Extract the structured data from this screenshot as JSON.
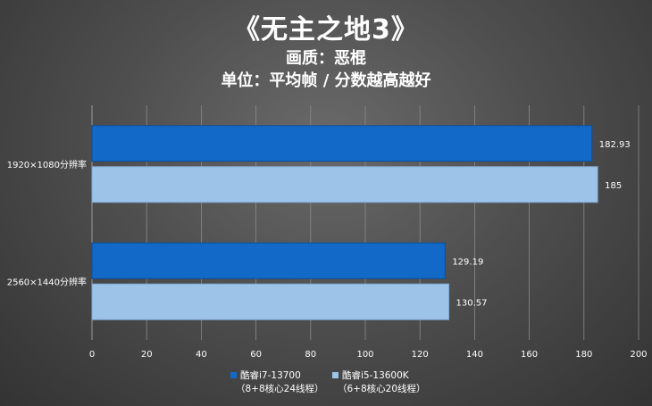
{
  "chart_data": {
    "type": "bar",
    "orientation": "horizontal",
    "title": "《无主之地3》",
    "subtitle_lines": [
      "画质：恶棍",
      "单位：平均帧 / 分数越高越好"
    ],
    "categories": [
      "1920×1080分辨率",
      "2560×1440分辨率"
    ],
    "series": [
      {
        "name": "酷睿i7-13700",
        "note": "（8+8核心24线程）",
        "values": [
          182.93,
          129.19
        ],
        "color": "#1269c7"
      },
      {
        "name": "酷睿i5-13600K",
        "note": "（6+8核心20线程）",
        "values": [
          185,
          130.57
        ],
        "color": "#9ec3e8"
      }
    ],
    "value_labels": [
      [
        "182.93",
        "129.19"
      ],
      [
        "185",
        "130.57"
      ]
    ],
    "xlim": [
      0,
      200
    ],
    "xticks": [
      0,
      20,
      40,
      60,
      80,
      100,
      120,
      140,
      160,
      180,
      200
    ],
    "xgrid": true,
    "legend_position": "bottom"
  }
}
